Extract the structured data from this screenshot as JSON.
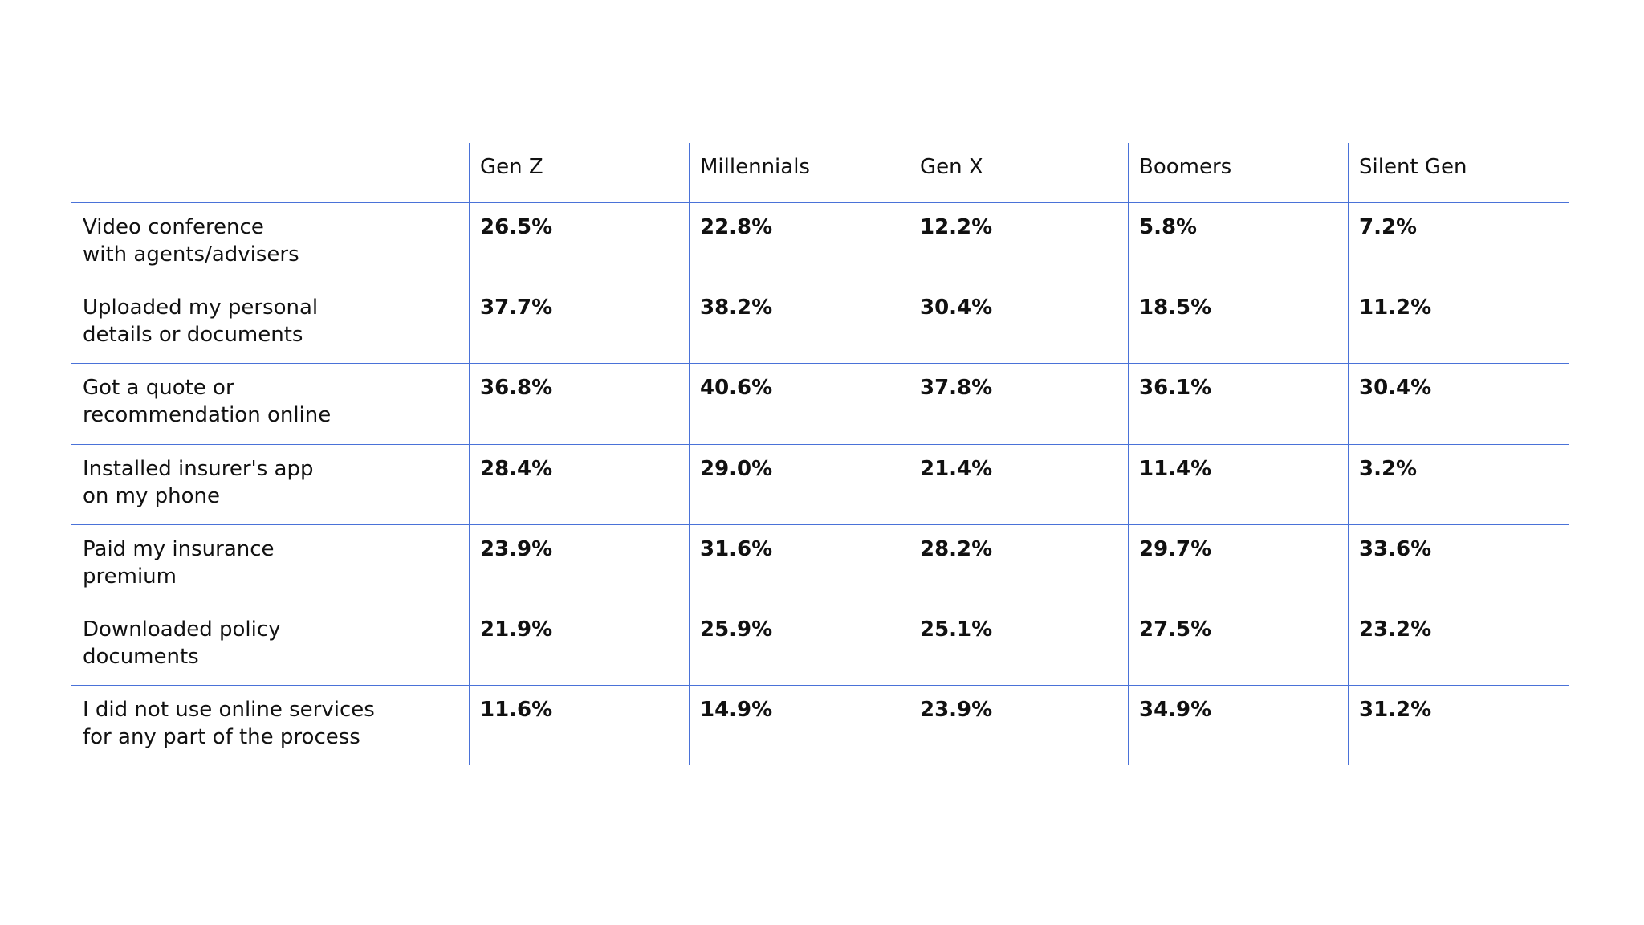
{
  "table": {
    "columns": [
      "Gen Z",
      "Millennials",
      "Gen X",
      "Boomers",
      "Silent Gen"
    ],
    "rows": [
      {
        "label": "Video conference\nwith agents/advisers",
        "cells": [
          "26.5%",
          "22.8%",
          "12.2%",
          "5.8%",
          "7.2%"
        ]
      },
      {
        "label": "Uploaded my personal\ndetails or documents",
        "cells": [
          "37.7%",
          "38.2%",
          "30.4%",
          "18.5%",
          "11.2%"
        ]
      },
      {
        "label": "Got a quote or\nrecommendation online",
        "cells": [
          "36.8%",
          "40.6%",
          "37.8%",
          "36.1%",
          "30.4%"
        ]
      },
      {
        "label": "Installed insurer's app\non my phone",
        "cells": [
          "28.4%",
          "29.0%",
          "21.4%",
          "11.4%",
          "3.2%"
        ]
      },
      {
        "label": "Paid my insurance\npremium",
        "cells": [
          "23.9%",
          "31.6%",
          "28.2%",
          "29.7%",
          "33.6%"
        ]
      },
      {
        "label": "Downloaded policy\ndocuments",
        "cells": [
          "21.9%",
          "25.9%",
          "25.1%",
          "27.5%",
          "23.2%"
        ]
      },
      {
        "label": "I did not use online services\nfor any part of the process",
        "cells": [
          "11.6%",
          "14.9%",
          "23.9%",
          "34.9%",
          "31.2%"
        ]
      }
    ]
  }
}
